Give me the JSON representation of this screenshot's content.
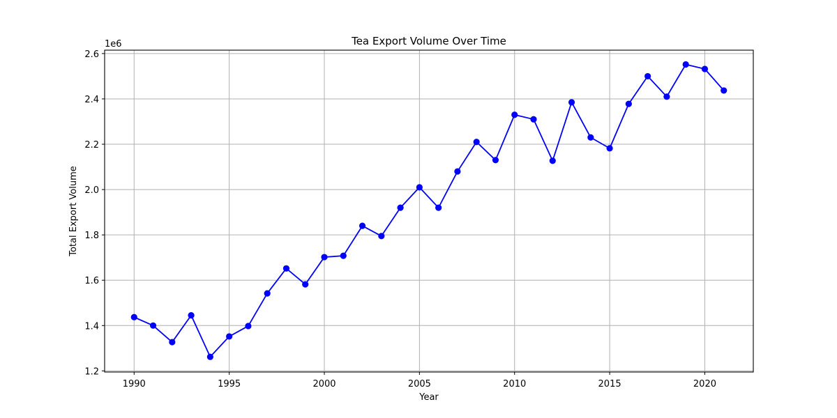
{
  "chart_data": {
    "type": "line",
    "title": "Tea Export Volume Over Time",
    "xlabel": "Year",
    "ylabel": "Total Export Volume",
    "y_offset_label": "1e6",
    "xlim": [
      1988.45,
      2022.55
    ],
    "ylim": [
      1.195,
      2.615
    ],
    "xticks": [
      1990,
      1995,
      2000,
      2005,
      2010,
      2015,
      2020
    ],
    "yticks": [
      1.2,
      1.4,
      1.6,
      1.8,
      2.0,
      2.2,
      2.4,
      2.6
    ],
    "ytick_labels": [
      "1.2",
      "1.4",
      "1.6",
      "1.8",
      "2.0",
      "2.2",
      "2.4",
      "2.6"
    ],
    "grid": true,
    "line_color": "#0000ff",
    "marker": "circle",
    "x": [
      1990,
      1991,
      1992,
      1993,
      1994,
      1995,
      1996,
      1997,
      1998,
      1999,
      2000,
      2001,
      2002,
      2003,
      2004,
      2005,
      2006,
      2007,
      2008,
      2009,
      2010,
      2011,
      2012,
      2013,
      2014,
      2015,
      2016,
      2017,
      2018,
      2019,
      2020,
      2021
    ],
    "values": [
      1.437,
      1.4,
      1.327,
      1.445,
      1.262,
      1.352,
      1.398,
      1.542,
      1.652,
      1.582,
      1.702,
      1.708,
      1.84,
      1.795,
      1.92,
      2.01,
      1.92,
      2.08,
      2.21,
      2.13,
      2.33,
      2.31,
      2.127,
      2.385,
      2.23,
      2.182,
      2.378,
      2.5,
      2.41,
      2.552,
      2.532,
      2.437
    ]
  }
}
